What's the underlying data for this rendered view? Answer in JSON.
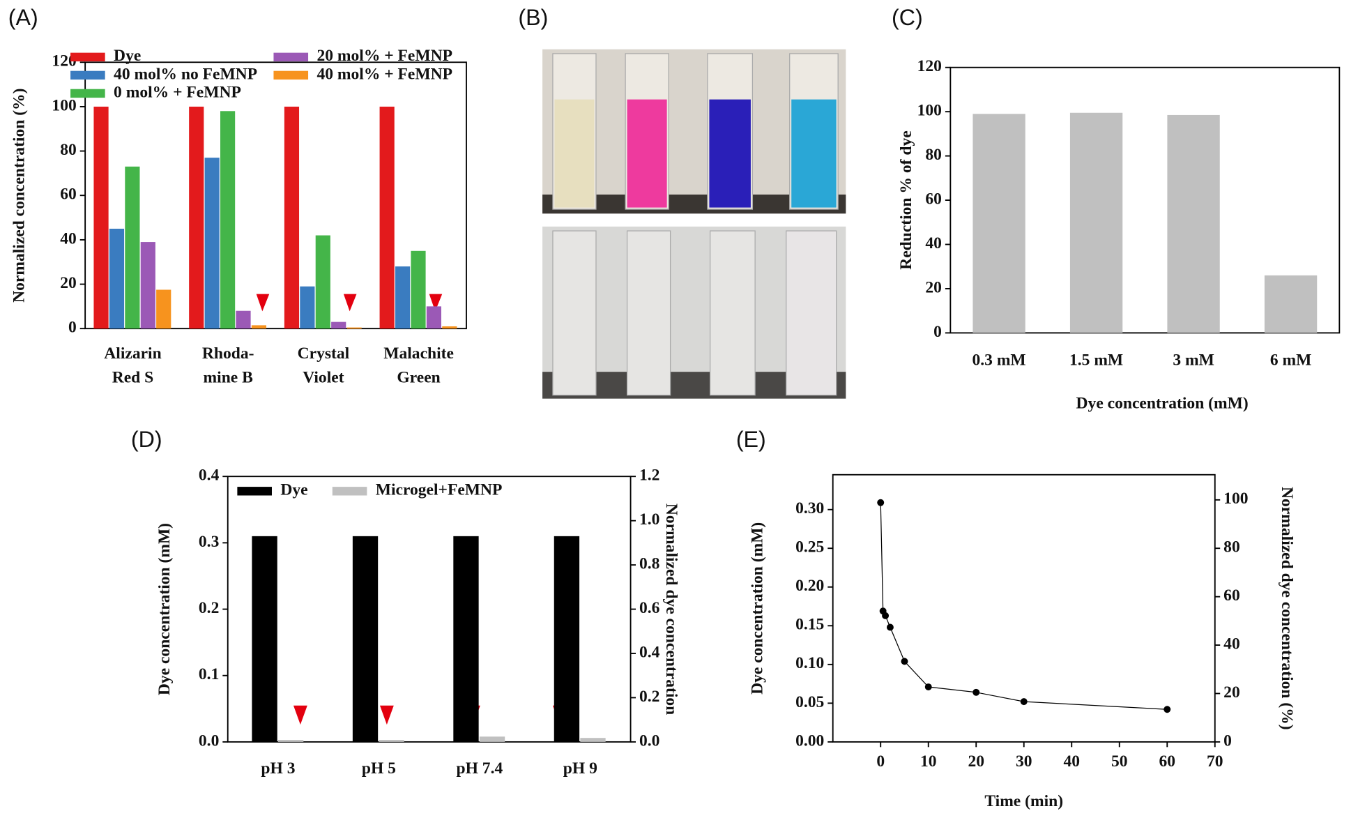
{
  "chart_data": [
    {
      "type": "bar",
      "label": "(A)",
      "ylabel": "Normalized concentration (%)",
      "categories": [
        [
          "Alizarin",
          "Red S"
        ],
        [
          "Rhoda-",
          "mine B"
        ],
        [
          "Crystal",
          "Violet"
        ],
        [
          "Malachite",
          "Green"
        ]
      ],
      "series": [
        {
          "name": "Dye",
          "color": "#e31a1c",
          "values": [
            100,
            100,
            100,
            100
          ]
        },
        {
          "name": "40 mol% no FeMNP",
          "color": "#3a7cc0",
          "values": [
            45,
            77,
            19,
            28
          ]
        },
        {
          "name": "0 mol% + FeMNP",
          "color": "#44b549",
          "values": [
            73,
            98,
            42,
            35
          ]
        },
        {
          "name": "20 mol% + FeMNP",
          "color": "#9b59b6",
          "values": [
            39,
            8,
            3,
            10
          ]
        },
        {
          "name": "40 mol% + FeMNP",
          "color": "#f7931e",
          "values": [
            17.5,
            1.5,
            0.5,
            1
          ]
        }
      ],
      "ylim": [
        0,
        120
      ],
      "yticks": [
        0,
        20,
        40,
        60,
        80,
        100,
        120
      ],
      "grid": false
    },
    {
      "type": "photo",
      "label": "(B)"
    },
    {
      "type": "bar",
      "label": "(C)",
      "ylabel": "Reduction % of dye",
      "xlabel": "Dye concentration (mM)",
      "categories": [
        "0.3 mM",
        "1.5 mM",
        "3 mM",
        "6 mM"
      ],
      "series": [
        {
          "color": "#c0c0c0",
          "values": [
            99,
            99.5,
            98.5,
            26
          ]
        }
      ],
      "ylim": [
        0,
        120
      ],
      "yticks": [
        0,
        20,
        40,
        60,
        80,
        100,
        120
      ],
      "grid": false
    },
    {
      "type": "bar",
      "label": "(D)",
      "ylabel": "Dye concentration (mM)",
      "y2label": "Normalized dye concentration",
      "categories": [
        "pH 3",
        "pH 5",
        "pH 7.4",
        "pH 9"
      ],
      "series": [
        {
          "name": "Dye",
          "color": "#000000",
          "values": [
            0.31,
            0.31,
            0.31,
            0.31
          ]
        },
        {
          "name": "Microgel+FeMNP",
          "color": "#c0c0c0",
          "values": [
            0.003,
            0.003,
            0.008,
            0.006
          ]
        }
      ],
      "ylim": [
        0,
        0.4
      ],
      "yticks": [
        {
          "value": 0,
          "label": "0.0"
        },
        0.1,
        0.2,
        0.3,
        0.4
      ],
      "y2lim": [
        0,
        1.2
      ],
      "y2ticks": [
        {
          "value": 0,
          "label": "0.0"
        },
        0.2,
        0.4,
        0.6,
        0.8,
        {
          "value": 1,
          "label": "1.0"
        },
        1.2
      ],
      "grid": false
    },
    {
      "type": "line",
      "label": "(E)",
      "xlabel": "Time (min)",
      "ylabel": "Dye concentration (mM)",
      "y2label": "Normalized dye concentration (%)",
      "x": [
        0,
        0.5,
        1,
        2,
        5,
        10,
        20,
        30,
        60
      ],
      "series": [
        {
          "color": "#000000",
          "values": [
            0.309,
            0.169,
            0.163,
            0.148,
            0.104,
            0.071,
            0.064,
            0.052,
            0.042
          ]
        }
      ],
      "xlim": [
        -10,
        70
      ],
      "xticks": [
        0,
        10,
        20,
        30,
        40,
        50,
        60,
        70
      ],
      "ylim": [
        0,
        0.345
      ],
      "yticks": [
        {
          "value": 0,
          "label": "0.00"
        },
        {
          "value": 0.05,
          "label": "0.05"
        },
        {
          "value": 0.1,
          "label": "0.10"
        },
        {
          "value": 0.15,
          "label": "0.15"
        },
        {
          "value": 0.2,
          "label": "0.20"
        },
        {
          "value": 0.25,
          "label": "0.25"
        },
        {
          "value": 0.3,
          "label": "0.30"
        }
      ],
      "y2lim": [
        0,
        110.4
      ],
      "y2ticks": [
        0,
        20,
        40,
        60,
        80,
        100
      ],
      "grid": false
    }
  ]
}
